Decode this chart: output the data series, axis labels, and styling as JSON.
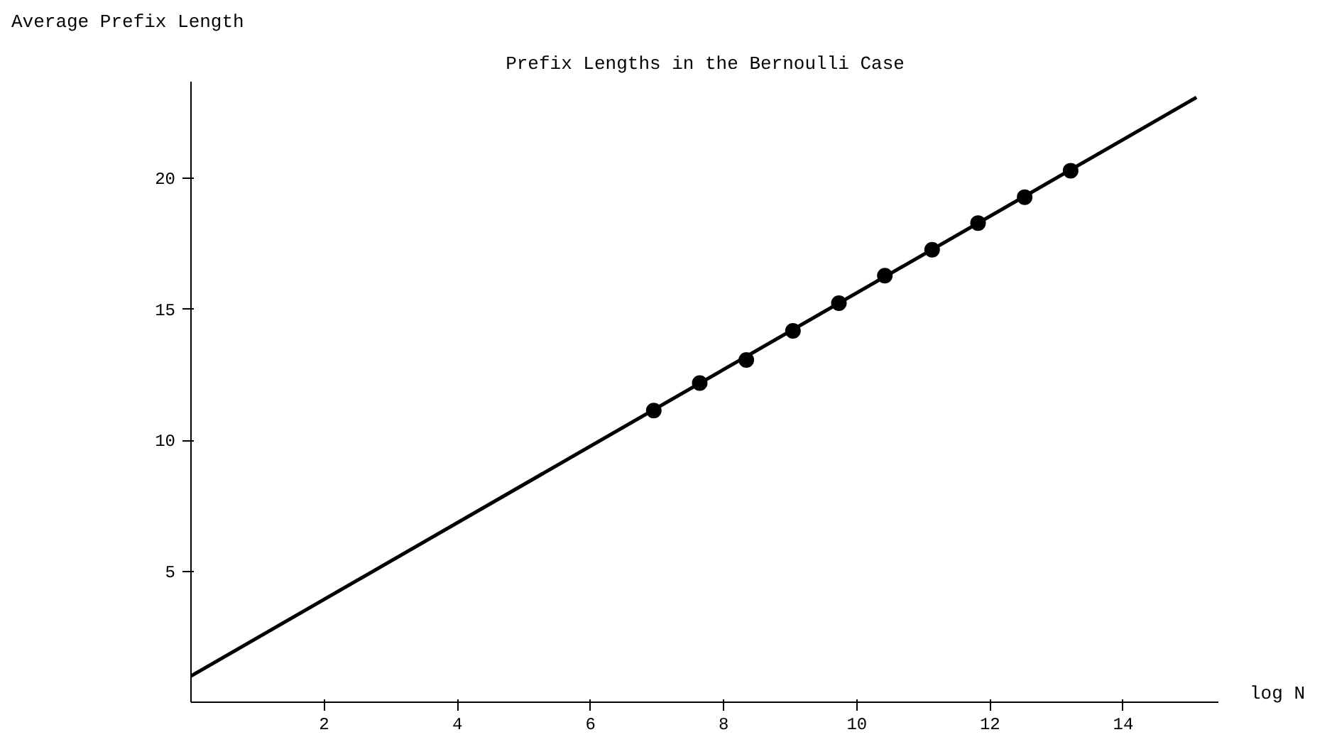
{
  "chart_data": {
    "type": "line",
    "title": "Prefix Lengths in the Bernoulli Case",
    "xlabel": "log N",
    "ylabel": "Average Prefix Length",
    "xlim": [
      0,
      15.44
    ],
    "ylim": [
      0,
      23.7
    ],
    "xticks": [
      2,
      4,
      6,
      8,
      10,
      12,
      14
    ],
    "yticks": [
      5,
      10,
      15,
      20
    ],
    "grid": false,
    "series": [
      {
        "color": "#000000",
        "x": [
          0,
          15.1
        ],
        "values": [
          1.0,
          23.1
        ]
      },
      {
        "type": "scatter",
        "color": "#000000",
        "x": [
          6.95,
          7.64,
          8.34,
          9.04,
          9.73,
          10.42,
          11.13,
          11.82,
          12.52,
          13.21
        ],
        "values": [
          11.14,
          12.19,
          13.07,
          14.18,
          15.24,
          16.29,
          17.28,
          18.3,
          19.29,
          20.3
        ],
        "marker": "circle"
      }
    ]
  }
}
